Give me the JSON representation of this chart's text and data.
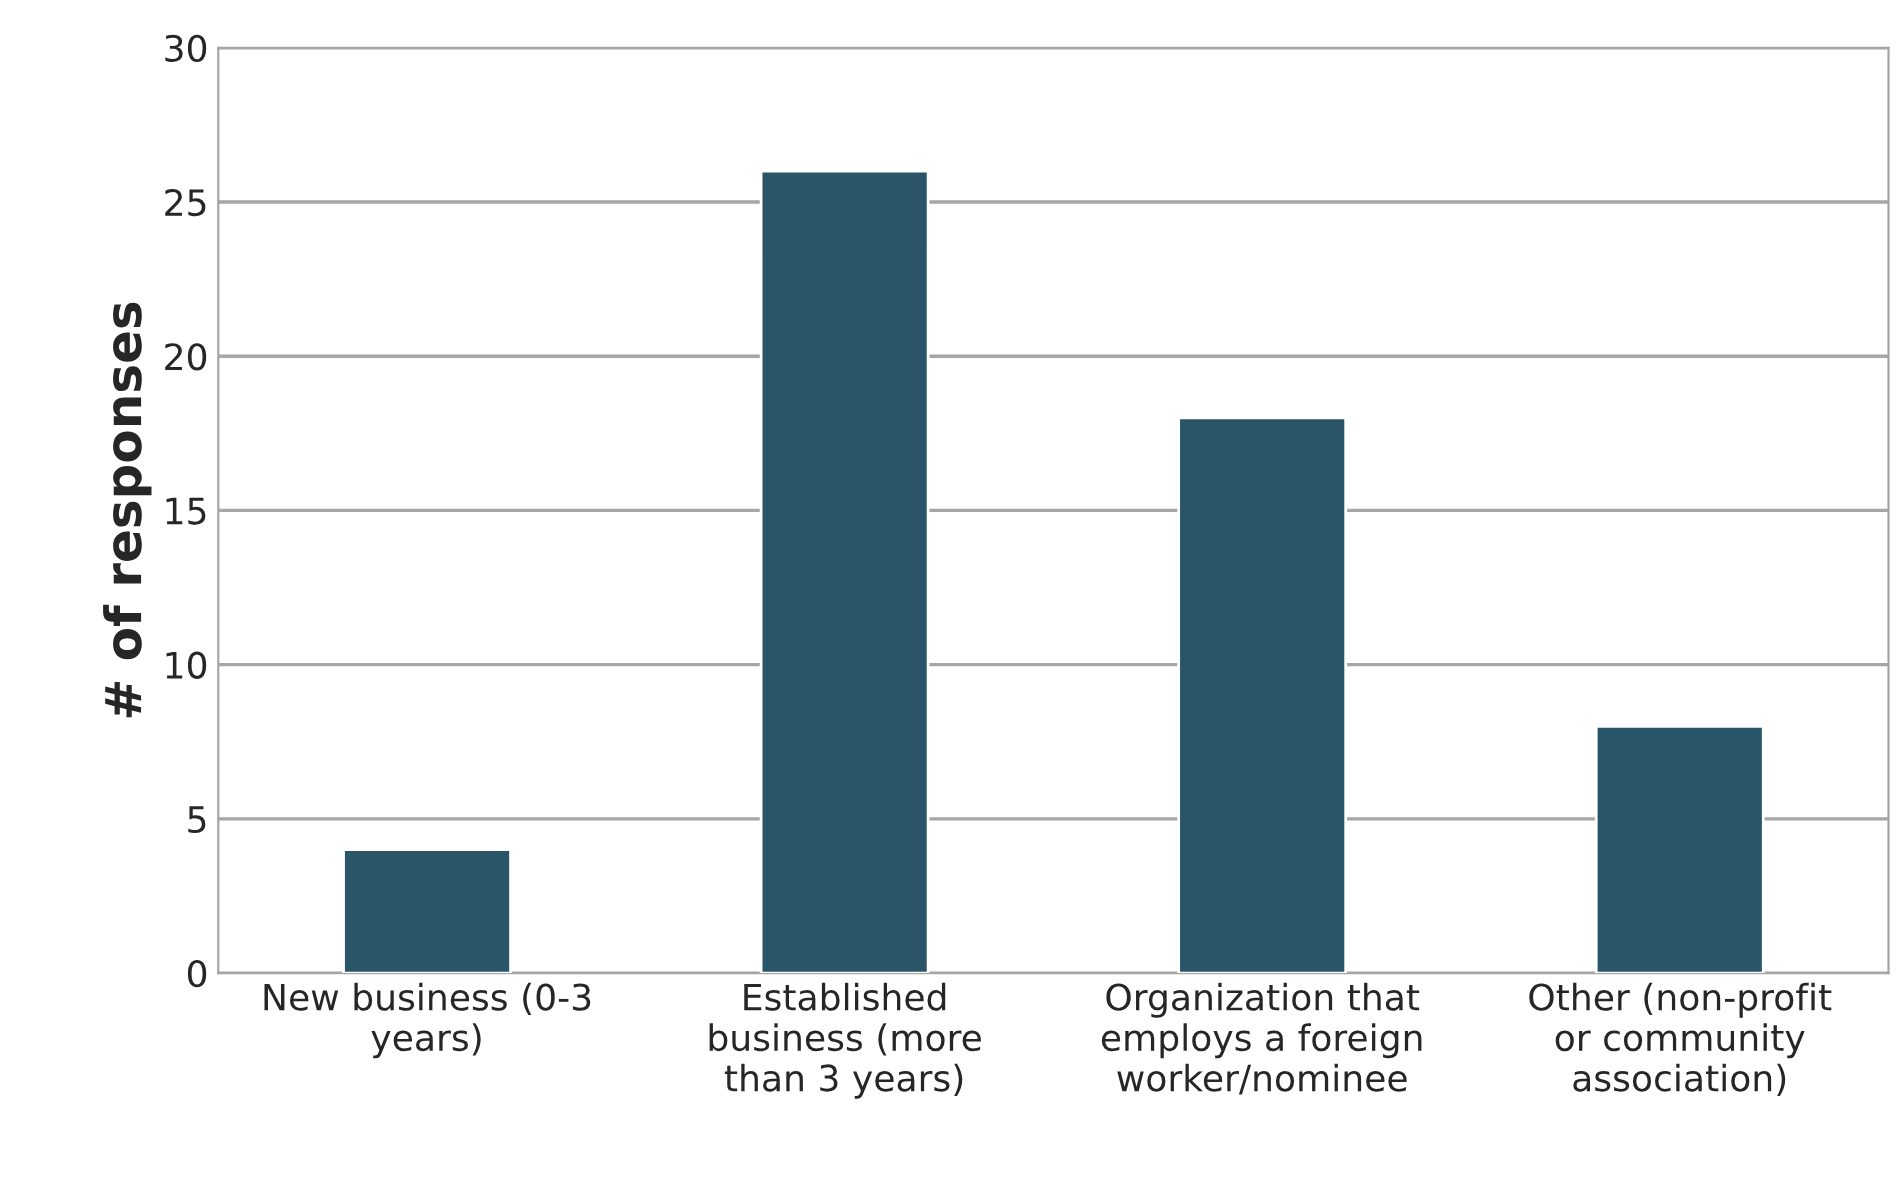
{
  "chart_data": {
    "type": "bar",
    "ylabel": "# of responses",
    "categories": [
      "New business (0-3\nyears)",
      "Established\nbusiness (more\nthan 3 years)",
      "Organization that\nemploys a foreign\nworker/nominee",
      "Other (non-profit\nor community\nassociation)"
    ],
    "values": [
      4,
      26,
      18,
      8
    ],
    "color": "#2a5468",
    "ylim": [
      0,
      30
    ],
    "yticks": [
      0,
      5,
      10,
      15,
      20,
      25,
      30
    ],
    "grid": "y"
  }
}
